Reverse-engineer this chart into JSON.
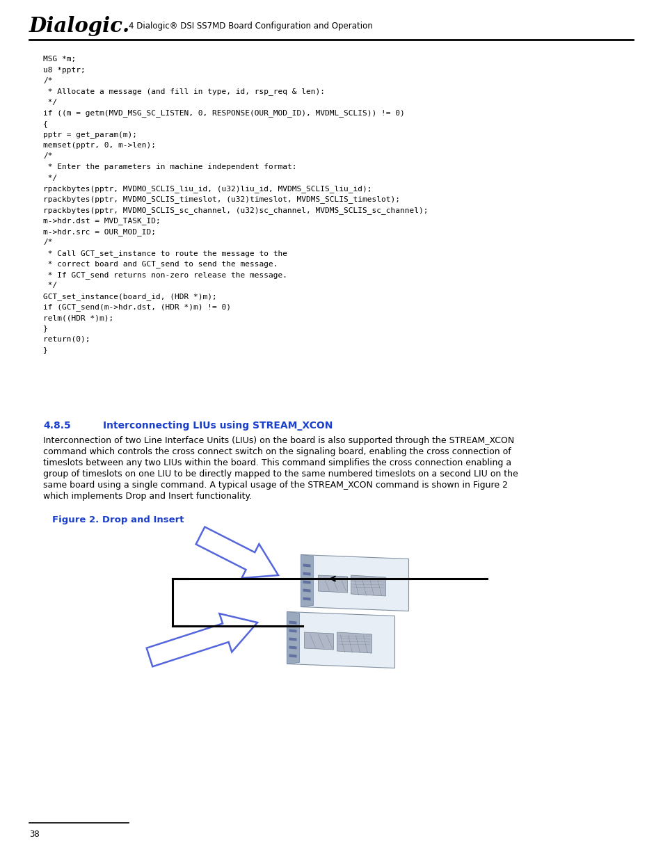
{
  "bg_color": "#ffffff",
  "header_logo_text": "Dialogic.",
  "header_caption": "4 Dialogic® DSI SS7MD Board Configuration and Operation",
  "page_number": "38",
  "section_number": "4.8.5",
  "section_title": "Interconnecting LIUs using STREAM_XCON",
  "body_lines": [
    "Interconnection of two Line Interface Units (LIUs) on the board is also supported through the STREAM_XCON",
    "command which controls the cross connect switch on the signaling board, enabling the cross connection of",
    "timeslots between any two LIUs within the board. This command simplifies the cross connection enabling a",
    "group of timeslots on one LIU to be directly mapped to the same numbered timeslots on a second LIU on the",
    "same board using a single command. A typical usage of the STREAM_XCON command is shown in Figure 2",
    "which implements Drop and Insert functionality."
  ],
  "figure_caption": "Figure 2. Drop and Insert",
  "code_lines": [
    "MSG *m;",
    "u8 *pptr;",
    "/*",
    " * Allocate a message (and fill in type, id, rsp_req & len):",
    " */",
    "if ((m = getm(MVD_MSG_SC_LISTEN, 0, RESPONSE(OUR_MOD_ID), MVDML_SCLIS)) != 0)",
    "{",
    "pptr = get_param(m);",
    "memset(pptr, 0, m->len);",
    "/*",
    " * Enter the parameters in machine independent format:",
    " */",
    "rpackbytes(pptr, MVDMO_SCLIS_liu_id, (u32)liu_id, MVDMS_SCLIS_liu_id);",
    "rpackbytes(pptr, MVDMO_SCLIS_timeslot, (u32)timeslot, MVDMS_SCLIS_timeslot);",
    "rpackbytes(pptr, MVDMO_SCLIS_sc_channel, (u32)sc_channel, MVDMS_SCLIS_sc_channel);",
    "m->hdr.dst = MVD_TASK_ID;",
    "m->hdr.src = OUR_MOD_ID;",
    "/*",
    " * Call GCT_set_instance to route the message to the",
    " * correct board and GCT_send to send the message.",
    " * If GCT_send returns non-zero release the message.",
    " */",
    "GCT_set_instance(board_id, (HDR *)m);",
    "if (GCT_send(m->hdr.dst, (HDR *)m) != 0)",
    "relm((HDR *)m);",
    "}",
    "return(0);",
    "}"
  ],
  "header_line_color": "#000000",
  "section_color": "#1a3fcc",
  "figure_caption_color": "#1a3fcc",
  "code_color": "#000000",
  "body_color": "#000000"
}
